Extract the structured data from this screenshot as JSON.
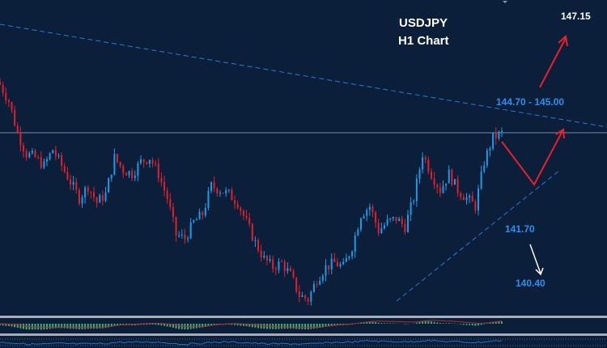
{
  "chart_data": {
    "type": "candlestick",
    "symbol": "USDJPY",
    "timeframe": "H1 Chart",
    "closes": [
      145.98,
      145.48,
      144.48,
      143.85,
      143.73,
      143.48,
      143.98,
      143.48,
      142.98,
      142.48,
      142.85,
      142.35,
      142.6,
      143.73,
      143.35,
      143.23,
      143.6,
      143.73,
      143.23,
      142.48,
      141.35,
      141.23,
      141.73,
      141.98,
      142.85,
      142.73,
      142.6,
      142.35,
      141.73,
      141.1,
      140.6,
      140.35,
      140.48,
      140.1,
      139.48,
      139.35,
      139.98,
      140.35,
      140.48,
      140.35,
      140.98,
      141.98,
      142.23,
      141.48,
      141.73,
      141.85,
      141.6,
      142.48,
      143.85,
      143.23,
      142.73,
      143.23,
      142.73,
      142.48,
      142.23,
      143.6,
      144.35,
      144.48
    ],
    "price_range": [
      137.9,
      148.6
    ],
    "current_price_line": 144.5,
    "annotations": {
      "target_up": "147.15",
      "resistance_zone": "144.70 - 145.00",
      "support": "141.70",
      "target_down": "140.40"
    },
    "colors": {
      "bull": "#1e9be8",
      "bear": "#e0202a",
      "background": "#0b1f3a",
      "trendline": "#2a7bd6",
      "arrow_red": "#e8202a",
      "arrow_white": "#ffffff"
    }
  }
}
